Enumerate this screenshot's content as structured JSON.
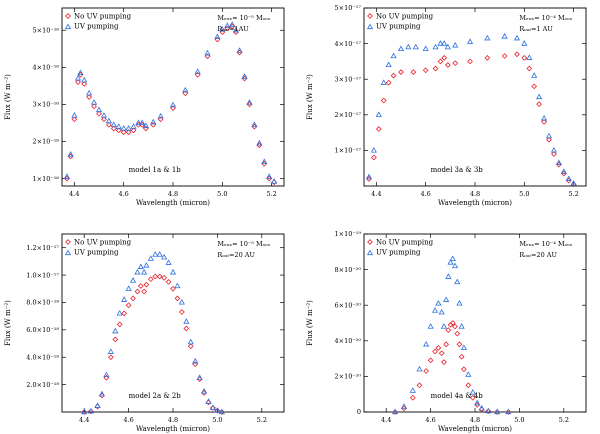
{
  "figure": {
    "name": "Four-panel CO fundamental emission spectra with and without UV pumping"
  },
  "chart_data": [
    {
      "type": "scatter",
      "id": "panel-1",
      "xlabel": "Wavelength (micron)",
      "ylabel": "Flux (W m⁻²)",
      "xlim": [
        4.35,
        5.25
      ],
      "ylim": [
        8e-17,
        5.6e-16
      ],
      "x_ticks": [
        {
          "value": 4.4,
          "label": "4.4"
        },
        {
          "value": 4.6,
          "label": "4.6"
        },
        {
          "value": 4.8,
          "label": "4.8"
        },
        {
          "value": 5.0,
          "label": "5.0"
        },
        {
          "value": 5.2,
          "label": "5.2"
        }
      ],
      "y_ticks": [
        {
          "value": 1e-16,
          "label": "1×10⁻¹⁶"
        },
        {
          "value": 2e-16,
          "label": "2×10⁻¹⁶"
        },
        {
          "value": 3e-16,
          "label": "3×10⁻¹⁶"
        },
        {
          "value": 4e-16,
          "label": "4×10⁻¹⁶"
        },
        {
          "value": 5e-16,
          "label": "5×10⁻¹⁶"
        }
      ],
      "legend": [
        "No UV pumping",
        "UV pumping"
      ],
      "legend_position": "top-left",
      "notes": [
        "Mₑₓₓ= 10⁻⁵ Mₒₒₒ",
        "Rₒᵤₜ=1AU"
      ],
      "model_label": "model 1a & 1b",
      "series": [
        {
          "name": "No UV pumping",
          "color": "#e8202a",
          "x": [
            4.37,
            4.385,
            4.4,
            4.415,
            4.425,
            4.44,
            4.46,
            4.48,
            4.5,
            4.52,
            4.54,
            4.56,
            4.58,
            4.6,
            4.62,
            4.64,
            4.66,
            4.675,
            4.69,
            4.72,
            4.75,
            4.8,
            4.85,
            4.9,
            4.94,
            4.98,
            5.0,
            5.02,
            5.04,
            5.055,
            5.07,
            5.09,
            5.11,
            5.13,
            5.15,
            5.17,
            5.19,
            5.21
          ],
          "y": [
            1e-16,
            1.6e-16,
            2.6e-16,
            3.6e-16,
            3.8e-16,
            3.55e-16,
            3.2e-16,
            2.95e-16,
            2.75e-16,
            2.6e-16,
            2.45e-16,
            2.35e-16,
            2.3e-16,
            2.25e-16,
            2.25e-16,
            2.3e-16,
            2.45e-16,
            2.45e-16,
            2.35e-16,
            2.45e-16,
            2.6e-16,
            2.9e-16,
            3.3e-16,
            3.8e-16,
            4.3e-16,
            4.75e-16,
            4.95e-16,
            5.05e-16,
            5.1e-16,
            4.95e-16,
            4.4e-16,
            3.7e-16,
            3e-16,
            2.4e-16,
            1.9e-16,
            1.4e-16,
            1e-16,
            9e-17
          ]
        },
        {
          "name": "UV pumping",
          "color": "#2a6fe0",
          "x": [
            4.37,
            4.385,
            4.4,
            4.415,
            4.425,
            4.44,
            4.46,
            4.48,
            4.5,
            4.52,
            4.54,
            4.56,
            4.58,
            4.6,
            4.62,
            4.64,
            4.66,
            4.675,
            4.69,
            4.72,
            4.75,
            4.8,
            4.85,
            4.9,
            4.94,
            4.98,
            5.0,
            5.02,
            5.04,
            5.055,
            5.07,
            5.09,
            5.11,
            5.13,
            5.15,
            5.17,
            5.19,
            5.21
          ],
          "y": [
            1.05e-16,
            1.65e-16,
            2.7e-16,
            3.7e-16,
            3.85e-16,
            3.65e-16,
            3.3e-16,
            3.05e-16,
            2.85e-16,
            2.7e-16,
            2.55e-16,
            2.45e-16,
            2.4e-16,
            2.35e-16,
            2.35e-16,
            2.4e-16,
            2.5e-16,
            2.5e-16,
            2.42e-16,
            2.52e-16,
            2.68e-16,
            2.98e-16,
            3.38e-16,
            3.88e-16,
            4.38e-16,
            4.82e-16,
            5.02e-16,
            5.12e-16,
            5.15e-16,
            5e-16,
            4.45e-16,
            3.75e-16,
            3.05e-16,
            2.45e-16,
            1.95e-16,
            1.45e-16,
            1.05e-16,
            9.2e-17
          ]
        }
      ]
    },
    {
      "type": "scatter",
      "id": "panel-2",
      "xlabel": "Wavelength (micron)",
      "ylabel": "Flux (W m⁻²)",
      "xlim": [
        4.35,
        5.25
      ],
      "ylim": [
        0,
        5e-17
      ],
      "x_ticks": [
        {
          "value": 4.4,
          "label": "4.4"
        },
        {
          "value": 4.6,
          "label": "4.6"
        },
        {
          "value": 4.8,
          "label": "4.8"
        },
        {
          "value": 5.0,
          "label": "5.0"
        },
        {
          "value": 5.2,
          "label": "5.2"
        }
      ],
      "y_ticks": [
        {
          "value": 1e-17,
          "label": "1×10⁻¹⁷"
        },
        {
          "value": 2e-17,
          "label": "2×10⁻¹⁷"
        },
        {
          "value": 3e-17,
          "label": "3×10⁻¹⁷"
        },
        {
          "value": 4e-17,
          "label": "4×10⁻¹⁷"
        },
        {
          "value": 5e-17,
          "label": "5×10⁻¹⁷"
        }
      ],
      "legend": [
        "No UV pumping",
        "UV pumping"
      ],
      "legend_position": "top-left",
      "notes": [
        "Mₑₓₓ= 10⁻⁴ Mₒₒₒ",
        "Rₒᵤₜ=1 AU"
      ],
      "model_label": "model 3a & 3b",
      "series": [
        {
          "name": "No UV pumping",
          "color": "#e8202a",
          "x": [
            4.37,
            4.39,
            4.41,
            4.43,
            4.45,
            4.47,
            4.5,
            4.55,
            4.6,
            4.64,
            4.66,
            4.675,
            4.69,
            4.72,
            4.78,
            4.85,
            4.92,
            4.97,
            5.0,
            5.02,
            5.04,
            5.06,
            5.08,
            5.1,
            5.12,
            5.14,
            5.16,
            5.18,
            5.2
          ],
          "y": [
            2e-18,
            8e-18,
            1.6e-17,
            2.4e-17,
            2.9e-17,
            3.1e-17,
            3.2e-17,
            3.2e-17,
            3.25e-17,
            3.3e-17,
            3.5e-17,
            3.6e-17,
            3.4e-17,
            3.45e-17,
            3.5e-17,
            3.6e-17,
            3.65e-17,
            3.7e-17,
            3.6e-17,
            3.3e-17,
            2.8e-17,
            2.3e-17,
            1.8e-17,
            1.3e-17,
            9e-18,
            6e-18,
            3.5e-18,
            1.5e-18,
            5e-19
          ]
        },
        {
          "name": "UV pumping",
          "color": "#2a6fe0",
          "x": [
            4.37,
            4.39,
            4.41,
            4.43,
            4.45,
            4.47,
            4.5,
            4.53,
            4.56,
            4.6,
            4.64,
            4.66,
            4.675,
            4.69,
            4.72,
            4.78,
            4.85,
            4.92,
            4.97,
            5.0,
            5.02,
            5.04,
            5.06,
            5.08,
            5.1,
            5.12,
            5.14,
            5.16,
            5.18,
            5.2
          ],
          "y": [
            2.5e-18,
            1e-17,
            2e-17,
            2.9e-17,
            3.4e-17,
            3.65e-17,
            3.85e-17,
            3.9e-17,
            3.9e-17,
            3.85e-17,
            3.9e-17,
            4e-17,
            4e-17,
            3.9e-17,
            3.95e-17,
            4.05e-17,
            4.15e-17,
            4.2e-17,
            4.15e-17,
            4e-17,
            3.6e-17,
            3.1e-17,
            2.5e-17,
            1.9e-17,
            1.4e-17,
            1e-17,
            6.5e-18,
            4e-18,
            2e-18,
            7e-19
          ]
        }
      ]
    },
    {
      "type": "scatter",
      "id": "panel-3",
      "xlabel": "Wavelength (micron)",
      "ylabel": "Flux (W m⁻²)",
      "xlim": [
        4.3,
        5.3
      ],
      "ylim": [
        0,
        1.3e-17
      ],
      "x_ticks": [
        {
          "value": 4.4,
          "label": "4.4"
        },
        {
          "value": 4.6,
          "label": "4.6"
        },
        {
          "value": 4.8,
          "label": "4.8"
        },
        {
          "value": 5.0,
          "label": "5.0"
        },
        {
          "value": 5.2,
          "label": "5.2"
        }
      ],
      "y_ticks": [
        {
          "value": 2e-18,
          "label": "2.0×10⁻¹⁸"
        },
        {
          "value": 4e-18,
          "label": "4.0×10⁻¹⁸"
        },
        {
          "value": 6e-18,
          "label": "6.0×10⁻¹⁸"
        },
        {
          "value": 8e-18,
          "label": "8.0×10⁻¹⁸"
        },
        {
          "value": 1e-17,
          "label": "1.0×10⁻¹⁷"
        },
        {
          "value": 1.2e-17,
          "label": "1.2×10⁻¹⁷"
        }
      ],
      "legend": [
        "No UV pumping",
        "UV pumping"
      ],
      "legend_position": "top-left",
      "notes": [
        "Mₑₓₓ= 10⁻⁵ Mₒₒₒ",
        "Rₒᵤₜ=20 AU"
      ],
      "model_label": "model 2a & 2b",
      "series": [
        {
          "name": "No UV pumping",
          "color": "#e8202a",
          "x": [
            4.4,
            4.43,
            4.46,
            4.48,
            4.5,
            4.52,
            4.54,
            4.56,
            4.58,
            4.6,
            4.62,
            4.64,
            4.655,
            4.67,
            4.68,
            4.7,
            4.72,
            4.74,
            4.76,
            4.78,
            4.8,
            4.82,
            4.84,
            4.86,
            4.88,
            4.9,
            4.92,
            4.94,
            4.96,
            4.98,
            5.0,
            5.02
          ],
          "y": [
            0.0,
            5e-20,
            4e-19,
            1.2e-18,
            2.5e-18,
            4e-18,
            5.3e-18,
            6.4e-18,
            7.2e-18,
            7.8e-18,
            8.3e-18,
            8.8e-18,
            9.2e-18,
            8.8e-18,
            9.3e-18,
            9.7e-18,
            9.9e-18,
            9.9e-18,
            9.8e-18,
            9.5e-18,
            9e-18,
            8.3e-18,
            7.3e-18,
            6.1e-18,
            4.8e-18,
            3.5e-18,
            2.4e-18,
            1.4e-18,
            7e-19,
            3e-19,
            1e-19,
            0.0
          ]
        },
        {
          "name": "UV pumping",
          "color": "#2a6fe0",
          "x": [
            4.4,
            4.43,
            4.46,
            4.48,
            4.5,
            4.52,
            4.54,
            4.56,
            4.58,
            4.6,
            4.62,
            4.64,
            4.655,
            4.67,
            4.68,
            4.7,
            4.72,
            4.74,
            4.76,
            4.78,
            4.8,
            4.82,
            4.84,
            4.86,
            4.88,
            4.9,
            4.92,
            4.94,
            4.96,
            4.98,
            5.0,
            5.02
          ],
          "y": [
            0.0,
            5e-20,
            4.5e-19,
            1.3e-18,
            2.7e-18,
            4.4e-18,
            5.9e-18,
            7.2e-18,
            8.2e-18,
            9e-18,
            9.6e-18,
            1.02e-17,
            1.06e-17,
            1.02e-17,
            1.07e-17,
            1.12e-17,
            1.15e-17,
            1.15e-17,
            1.13e-17,
            1.09e-17,
            1.02e-17,
            9.2e-18,
            8e-18,
            6.6e-18,
            5.1e-18,
            3.7e-18,
            2.5e-18,
            1.5e-18,
            7.5e-19,
            3e-19,
            1e-19,
            0.0
          ]
        }
      ]
    },
    {
      "type": "scatter",
      "id": "panel-4",
      "xlabel": "Wavelength (micron)",
      "ylabel": "Flux (W m⁻²)",
      "xlim": [
        4.3,
        5.3
      ],
      "ylim": [
        0,
        1e-19
      ],
      "x_ticks": [
        {
          "value": 4.4,
          "label": "4.4"
        },
        {
          "value": 4.6,
          "label": "4.6"
        },
        {
          "value": 4.8,
          "label": "4.8"
        },
        {
          "value": 5.0,
          "label": "5.0"
        },
        {
          "value": 5.2,
          "label": "5.2"
        }
      ],
      "y_ticks": [
        {
          "value": 0,
          "label": "0"
        },
        {
          "value": 2e-20,
          "label": "2×10⁻²⁰"
        },
        {
          "value": 4e-20,
          "label": "4×10⁻²⁰"
        },
        {
          "value": 6e-20,
          "label": "6×10⁻²⁰"
        },
        {
          "value": 8e-20,
          "label": "8×10⁻²⁰"
        },
        {
          "value": 1e-19,
          "label": "1×10⁻¹⁹"
        }
      ],
      "legend": [
        "No UV pumping",
        "UV pumping"
      ],
      "legend_position": "top-left",
      "notes": [
        "Mₑₓₓ= 10⁻⁴ Mₒₒₒ",
        "Rₒᵤₜ=20 AU"
      ],
      "model_label": "model 4a & 4b",
      "series": [
        {
          "name": "No UV pumping",
          "color": "#e8202a",
          "x": [
            4.44,
            4.48,
            4.52,
            4.55,
            4.58,
            4.6,
            4.62,
            4.635,
            4.65,
            4.66,
            4.67,
            4.68,
            4.69,
            4.7,
            4.71,
            4.72,
            4.73,
            4.74,
            4.75,
            4.77,
            4.79,
            4.81,
            4.83,
            4.86,
            4.9,
            4.95
          ],
          "y": [
            0.0,
            2e-21,
            8e-21,
            1.5e-20,
            2.3e-20,
            2.9e-20,
            3.4e-20,
            3.6e-20,
            3.3e-20,
            2.8e-20,
            3.8e-20,
            4.6e-20,
            4.9e-20,
            5e-20,
            4.8e-20,
            4.4e-20,
            3.8e-20,
            3.1e-20,
            2.4e-20,
            1.5e-20,
            8e-21,
            4e-21,
            1.5e-21,
            5e-22,
            0.0,
            0.0
          ]
        },
        {
          "name": "UV pumping",
          "color": "#2a6fe0",
          "x": [
            4.44,
            4.48,
            4.52,
            4.55,
            4.58,
            4.6,
            4.62,
            4.635,
            4.65,
            4.66,
            4.67,
            4.68,
            4.69,
            4.7,
            4.71,
            4.72,
            4.73,
            4.74,
            4.75,
            4.77,
            4.79,
            4.81,
            4.83,
            4.86,
            4.9,
            4.95
          ],
          "y": [
            0.0,
            3e-21,
            1.2e-20,
            2.4e-20,
            3.8e-20,
            4.8e-20,
            5.7e-20,
            6.1e-20,
            5.6e-20,
            4.8e-20,
            6.3e-20,
            7.6e-20,
            8.4e-20,
            8.6e-20,
            8.2e-20,
            7.3e-20,
            6.1e-20,
            4.8e-20,
            3.6e-20,
            2.1e-20,
            1.1e-20,
            5e-21,
            2e-21,
            5e-22,
            0.0,
            0.0
          ]
        }
      ]
    }
  ]
}
